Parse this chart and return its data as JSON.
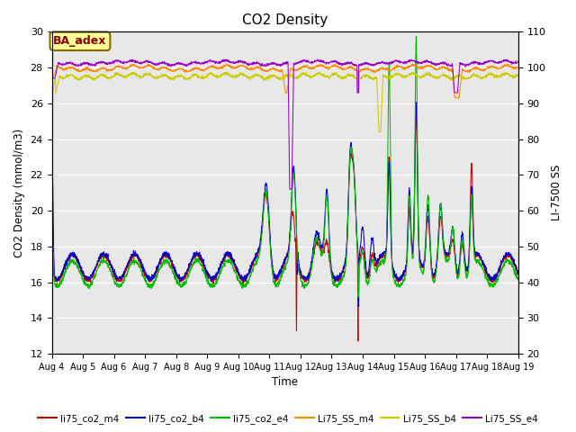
{
  "title": "CO2 Density",
  "xlabel": "Time",
  "ylabel_left": "CO2 Density (mmol/m3)",
  "ylabel_right": "LI-7500 SS",
  "ylim_left": [
    12,
    30
  ],
  "ylim_right": [
    20,
    110
  ],
  "bg_color": "#e8e8e8",
  "annotation_text": "BA_adex",
  "annotation_fc": "#ffff99",
  "annotation_ec": "#886600",
  "annotation_tc": "#880000",
  "colors": {
    "li75_co2_m4": "#cc0000",
    "li75_co2_b4": "#0000cc",
    "li75_co2_e4": "#00bb00",
    "Li75_SS_m4": "#ff8800",
    "Li75_SS_b4": "#cccc00",
    "Li75_SS_e4": "#9900cc"
  },
  "series_labels": [
    "li75_co2_m4",
    "li75_co2_b4",
    "li75_co2_e4",
    "Li75_SS_m4",
    "Li75_SS_b4",
    "Li75_SS_e4"
  ],
  "x_start": 4,
  "x_end": 19,
  "x_ticks": [
    4,
    5,
    6,
    7,
    8,
    9,
    10,
    11,
    12,
    13,
    14,
    15,
    16,
    17,
    18,
    19
  ],
  "x_labels": [
    "Aug 4",
    "Aug 5",
    "Aug 6",
    "Aug 7",
    "Aug 8",
    "Aug 9",
    "Aug 10",
    "Aug 11",
    "Aug 12",
    "Aug 13",
    "Aug 14",
    "Aug 15",
    "Aug 16",
    "Aug 17",
    "Aug 18",
    "Aug 19"
  ],
  "left_yticks": [
    12,
    14,
    16,
    18,
    20,
    22,
    24,
    26,
    28,
    30
  ],
  "right_yticks": [
    20,
    30,
    40,
    50,
    60,
    70,
    80,
    90,
    100,
    110
  ]
}
